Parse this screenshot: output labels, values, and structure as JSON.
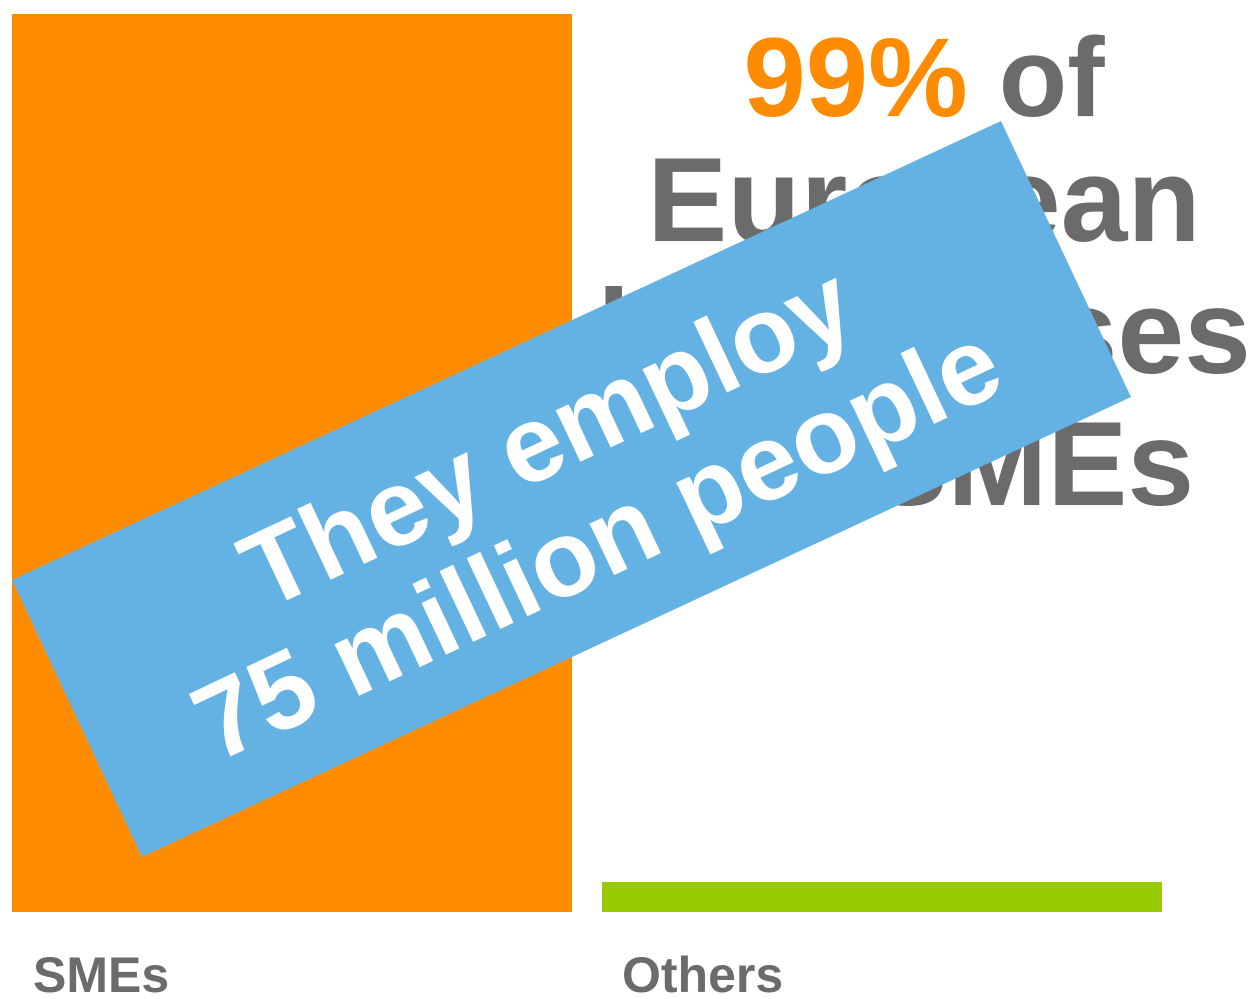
{
  "chart_data": {
    "type": "bar",
    "categories": [
      "SMEs",
      "Others"
    ],
    "values": [
      99,
      1
    ],
    "ylim": [
      0,
      100
    ],
    "grid": false,
    "colors": [
      "#ff8c00",
      "#99cc00"
    ]
  },
  "headline": {
    "percent": "99%",
    "line1_rest": " of",
    "line2": "European",
    "line3": "businesses",
    "line4": "are SMEs"
  },
  "banner": {
    "line1": "They employ",
    "line2": "75 million people",
    "color": "#63b2e3"
  }
}
